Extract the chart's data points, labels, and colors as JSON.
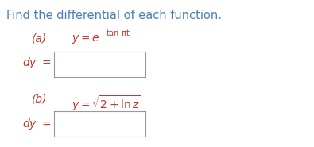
{
  "title": "Find the differential of each function.",
  "title_color": "#4a7fb5",
  "title_fontsize": 10.5,
  "bg_color": "#ffffff",
  "red_color": "#c0392b",
  "box_edge_color": "#999999",
  "part_a_label": "(a)",
  "part_b_label": "(b)",
  "dy_label": "dy =",
  "fig_width": 3.95,
  "fig_height": 1.85,
  "dpi": 100
}
